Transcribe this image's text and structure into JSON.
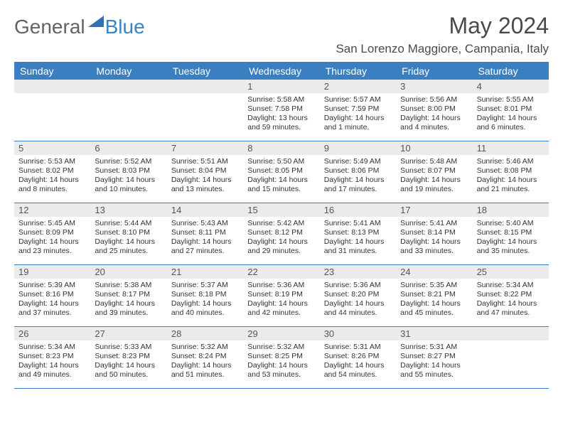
{
  "logo": {
    "part1": "General",
    "part2": "Blue"
  },
  "title": "May 2024",
  "location": "San Lorenzo Maggiore, Campania, Italy",
  "colors": {
    "header_blue": "#3a7fbf",
    "grey_band": "#ebebeb",
    "text": "#333333",
    "logo_grey": "#636363",
    "logo_blue": "#3b84c4"
  },
  "day_labels": [
    "Sunday",
    "Monday",
    "Tuesday",
    "Wednesday",
    "Thursday",
    "Friday",
    "Saturday"
  ],
  "weeks": [
    [
      {
        "n": "",
        "sr": "",
        "ss": "",
        "dl": ""
      },
      {
        "n": "",
        "sr": "",
        "ss": "",
        "dl": ""
      },
      {
        "n": "",
        "sr": "",
        "ss": "",
        "dl": ""
      },
      {
        "n": "1",
        "sr": "Sunrise: 5:58 AM",
        "ss": "Sunset: 7:58 PM",
        "dl": "Daylight: 13 hours and 59 minutes."
      },
      {
        "n": "2",
        "sr": "Sunrise: 5:57 AM",
        "ss": "Sunset: 7:59 PM",
        "dl": "Daylight: 14 hours and 1 minute."
      },
      {
        "n": "3",
        "sr": "Sunrise: 5:56 AM",
        "ss": "Sunset: 8:00 PM",
        "dl": "Daylight: 14 hours and 4 minutes."
      },
      {
        "n": "4",
        "sr": "Sunrise: 5:55 AM",
        "ss": "Sunset: 8:01 PM",
        "dl": "Daylight: 14 hours and 6 minutes."
      }
    ],
    [
      {
        "n": "5",
        "sr": "Sunrise: 5:53 AM",
        "ss": "Sunset: 8:02 PM",
        "dl": "Daylight: 14 hours and 8 minutes."
      },
      {
        "n": "6",
        "sr": "Sunrise: 5:52 AM",
        "ss": "Sunset: 8:03 PM",
        "dl": "Daylight: 14 hours and 10 minutes."
      },
      {
        "n": "7",
        "sr": "Sunrise: 5:51 AM",
        "ss": "Sunset: 8:04 PM",
        "dl": "Daylight: 14 hours and 13 minutes."
      },
      {
        "n": "8",
        "sr": "Sunrise: 5:50 AM",
        "ss": "Sunset: 8:05 PM",
        "dl": "Daylight: 14 hours and 15 minutes."
      },
      {
        "n": "9",
        "sr": "Sunrise: 5:49 AM",
        "ss": "Sunset: 8:06 PM",
        "dl": "Daylight: 14 hours and 17 minutes."
      },
      {
        "n": "10",
        "sr": "Sunrise: 5:48 AM",
        "ss": "Sunset: 8:07 PM",
        "dl": "Daylight: 14 hours and 19 minutes."
      },
      {
        "n": "11",
        "sr": "Sunrise: 5:46 AM",
        "ss": "Sunset: 8:08 PM",
        "dl": "Daylight: 14 hours and 21 minutes."
      }
    ],
    [
      {
        "n": "12",
        "sr": "Sunrise: 5:45 AM",
        "ss": "Sunset: 8:09 PM",
        "dl": "Daylight: 14 hours and 23 minutes."
      },
      {
        "n": "13",
        "sr": "Sunrise: 5:44 AM",
        "ss": "Sunset: 8:10 PM",
        "dl": "Daylight: 14 hours and 25 minutes."
      },
      {
        "n": "14",
        "sr": "Sunrise: 5:43 AM",
        "ss": "Sunset: 8:11 PM",
        "dl": "Daylight: 14 hours and 27 minutes."
      },
      {
        "n": "15",
        "sr": "Sunrise: 5:42 AM",
        "ss": "Sunset: 8:12 PM",
        "dl": "Daylight: 14 hours and 29 minutes."
      },
      {
        "n": "16",
        "sr": "Sunrise: 5:41 AM",
        "ss": "Sunset: 8:13 PM",
        "dl": "Daylight: 14 hours and 31 minutes."
      },
      {
        "n": "17",
        "sr": "Sunrise: 5:41 AM",
        "ss": "Sunset: 8:14 PM",
        "dl": "Daylight: 14 hours and 33 minutes."
      },
      {
        "n": "18",
        "sr": "Sunrise: 5:40 AM",
        "ss": "Sunset: 8:15 PM",
        "dl": "Daylight: 14 hours and 35 minutes."
      }
    ],
    [
      {
        "n": "19",
        "sr": "Sunrise: 5:39 AM",
        "ss": "Sunset: 8:16 PM",
        "dl": "Daylight: 14 hours and 37 minutes."
      },
      {
        "n": "20",
        "sr": "Sunrise: 5:38 AM",
        "ss": "Sunset: 8:17 PM",
        "dl": "Daylight: 14 hours and 39 minutes."
      },
      {
        "n": "21",
        "sr": "Sunrise: 5:37 AM",
        "ss": "Sunset: 8:18 PM",
        "dl": "Daylight: 14 hours and 40 minutes."
      },
      {
        "n": "22",
        "sr": "Sunrise: 5:36 AM",
        "ss": "Sunset: 8:19 PM",
        "dl": "Daylight: 14 hours and 42 minutes."
      },
      {
        "n": "23",
        "sr": "Sunrise: 5:36 AM",
        "ss": "Sunset: 8:20 PM",
        "dl": "Daylight: 14 hours and 44 minutes."
      },
      {
        "n": "24",
        "sr": "Sunrise: 5:35 AM",
        "ss": "Sunset: 8:21 PM",
        "dl": "Daylight: 14 hours and 45 minutes."
      },
      {
        "n": "25",
        "sr": "Sunrise: 5:34 AM",
        "ss": "Sunset: 8:22 PM",
        "dl": "Daylight: 14 hours and 47 minutes."
      }
    ],
    [
      {
        "n": "26",
        "sr": "Sunrise: 5:34 AM",
        "ss": "Sunset: 8:23 PM",
        "dl": "Daylight: 14 hours and 49 minutes."
      },
      {
        "n": "27",
        "sr": "Sunrise: 5:33 AM",
        "ss": "Sunset: 8:23 PM",
        "dl": "Daylight: 14 hours and 50 minutes."
      },
      {
        "n": "28",
        "sr": "Sunrise: 5:32 AM",
        "ss": "Sunset: 8:24 PM",
        "dl": "Daylight: 14 hours and 51 minutes."
      },
      {
        "n": "29",
        "sr": "Sunrise: 5:32 AM",
        "ss": "Sunset: 8:25 PM",
        "dl": "Daylight: 14 hours and 53 minutes."
      },
      {
        "n": "30",
        "sr": "Sunrise: 5:31 AM",
        "ss": "Sunset: 8:26 PM",
        "dl": "Daylight: 14 hours and 54 minutes."
      },
      {
        "n": "31",
        "sr": "Sunrise: 5:31 AM",
        "ss": "Sunset: 8:27 PM",
        "dl": "Daylight: 14 hours and 55 minutes."
      },
      {
        "n": "",
        "sr": "",
        "ss": "",
        "dl": ""
      }
    ]
  ]
}
